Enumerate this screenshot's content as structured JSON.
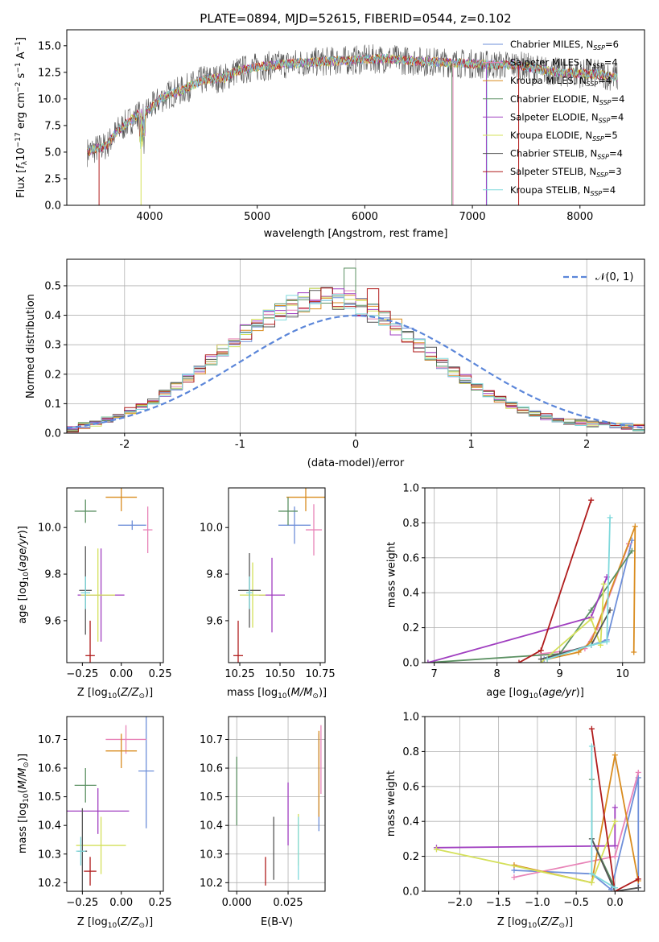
{
  "chart_data": [
    {
      "id": "spectrum",
      "type": "line",
      "title": "PLATE=0894, MJD=52615, FIBERID=0544, z=0.102",
      "xlabel": "wavelength [Angstrom, rest frame]",
      "ylabel": "Flux [fλ10⁻¹⁷ erg cm⁻² s⁻¹ A⁻¹]",
      "xlim": [
        3230,
        8600
      ],
      "ylim": [
        0,
        16.5
      ],
      "xticks": [
        4000,
        5000,
        6000,
        7000,
        8000
      ],
      "yticks": [
        0.0,
        2.5,
        5.0,
        7.5,
        10.0,
        12.5,
        15.0
      ],
      "envelope": {
        "x": [
          3420,
          3500,
          3600,
          3700,
          3800,
          3900,
          4000,
          4100,
          4200,
          4300,
          4400,
          4500,
          4600,
          4700,
          4800,
          4900,
          5000,
          5200,
          5400,
          5600,
          5800,
          6000,
          6200,
          6400,
          6600,
          6800,
          7000,
          7200,
          7400,
          7600,
          7800,
          8000,
          8200,
          8350
        ],
        "y": [
          5.0,
          5.3,
          5.6,
          7.0,
          7.8,
          8.6,
          9.0,
          10.0,
          10.5,
          10.8,
          11.3,
          11.8,
          11.9,
          12.0,
          12.6,
          12.8,
          13.0,
          13.2,
          13.4,
          13.5,
          13.6,
          13.7,
          13.8,
          13.6,
          13.5,
          13.4,
          13.3,
          13.2,
          13.2,
          12.8,
          12.5,
          12.4,
          12.3,
          12.0
        ]
      },
      "series": [
        {
          "name": "Chabrier MILES, N_SSP=6",
          "color": "#6e8fd9"
        },
        {
          "name": "Salpeter MILES, N_SSP=4",
          "color": "#e884b8"
        },
        {
          "name": "Kroupa MILES, N_SSP=4",
          "color": "#d98c1f"
        },
        {
          "name": "Chabrier ELODIE, N_SSP=4",
          "color": "#5c9163"
        },
        {
          "name": "Salpeter ELODIE, N_SSP=4",
          "color": "#a03fc0"
        },
        {
          "name": "Kroupa ELODIE, N_SSP=5",
          "color": "#d4e05a"
        },
        {
          "name": "Chabrier STELIB, N_SSP=4",
          "color": "#555555"
        },
        {
          "name": "Salpeter STELIB, N_SSP=3",
          "color": "#b01c1c"
        },
        {
          "name": "Kroupa STELIB, N_SSP=4",
          "color": "#7fd9dc"
        }
      ]
    },
    {
      "id": "residuals",
      "type": "line",
      "xlabel": "(data-model)/error",
      "ylabel": "Normed distribution",
      "xlim": [
        -2.5,
        2.5
      ],
      "ylim": [
        0,
        0.59
      ],
      "xticks": [
        -2,
        -1,
        0,
        1,
        2
      ],
      "yticks": [
        0.0,
        0.1,
        0.2,
        0.3,
        0.4,
        0.5
      ],
      "legend": "$\\mathcal{N}(0,1)$",
      "legend_text": "𝒩(0, 1)",
      "legend_position": "top-right",
      "normal_color": "#5b86d9",
      "bin_width": 0.1,
      "hist_base": [
        0.015,
        0.025,
        0.035,
        0.045,
        0.06,
        0.075,
        0.09,
        0.11,
        0.135,
        0.16,
        0.185,
        0.215,
        0.245,
        0.28,
        0.31,
        0.34,
        0.37,
        0.395,
        0.415,
        0.43,
        0.445,
        0.455,
        0.46,
        0.455,
        0.445,
        0.43,
        0.41,
        0.385,
        0.36,
        0.33,
        0.3,
        0.27,
        0.24,
        0.21,
        0.185,
        0.16,
        0.135,
        0.115,
        0.095,
        0.08,
        0.065,
        0.055,
        0.045,
        0.04,
        0.035,
        0.03,
        0.028,
        0.025,
        0.022,
        0.02
      ]
    },
    {
      "id": "z-age",
      "type": "scatter",
      "xlabel": "Z [log₁₀(Z/Z⊙)]",
      "ylabel": "age  [log₁₀(age/yr)]",
      "xlim": [
        -0.35,
        0.27
      ],
      "ylim": [
        9.42,
        10.17
      ],
      "xticks": [
        -0.25,
        0.0,
        0.25
      ],
      "xtick_labels": [
        "−0.25",
        "0.00",
        "0.25"
      ],
      "yticks": [
        9.6,
        9.8,
        10.0
      ],
      "points": [
        {
          "series": 0,
          "x": 0.07,
          "y": 10.01,
          "xe": 0.09,
          "ye": 0.02
        },
        {
          "series": 1,
          "x": 0.17,
          "y": 9.99,
          "xe": 0.03,
          "ye": 0.1
        },
        {
          "series": 2,
          "x": 0.0,
          "y": 10.13,
          "xe": 0.1,
          "ye": 0.06
        },
        {
          "series": 3,
          "x": -0.23,
          "y": 10.07,
          "xe": 0.07,
          "ye": 0.05
        },
        {
          "series": 4,
          "x": -0.13,
          "y": 9.71,
          "xe": 0.15,
          "ye": 0.2
        },
        {
          "series": 5,
          "x": -0.15,
          "y": 9.71,
          "xe": 0.11,
          "ye": 0.2
        },
        {
          "series": 6,
          "x": -0.23,
          "y": 9.73,
          "xe": 0.04,
          "ye": 0.19
        },
        {
          "series": 7,
          "x": -0.2,
          "y": 9.45,
          "xe": 0.03,
          "ye": 0.15
        },
        {
          "series": 8,
          "x": -0.23,
          "y": 9.72,
          "xe": 0.03,
          "ye": 0.07
        }
      ]
    },
    {
      "id": "mass-age",
      "type": "scatter",
      "xlabel": "mass [log₁₀(M/M⊙)]",
      "xlim": [
        10.18,
        10.78
      ],
      "ylim": [
        9.42,
        10.17
      ],
      "xticks": [
        10.25,
        10.5,
        10.75
      ],
      "xtick_labels": [
        "10.25",
        "10.50",
        "10.75"
      ],
      "yticks": [
        9.6,
        9.8,
        10.0
      ],
      "points": [
        {
          "series": 0,
          "x": 10.59,
          "y": 10.01,
          "xe": 0.1,
          "ye": 0.08
        },
        {
          "series": 1,
          "x": 10.71,
          "y": 9.99,
          "xe": 0.05,
          "ye": 0.11
        },
        {
          "series": 2,
          "x": 10.66,
          "y": 10.13,
          "xe": 0.12,
          "ye": 0.06
        },
        {
          "series": 3,
          "x": 10.55,
          "y": 10.07,
          "xe": 0.06,
          "ye": 0.06
        },
        {
          "series": 4,
          "x": 10.45,
          "y": 9.71,
          "xe": 0.08,
          "ye": 0.16
        },
        {
          "series": 5,
          "x": 10.33,
          "y": 9.71,
          "xe": 0.08,
          "ye": 0.14
        },
        {
          "series": 6,
          "x": 10.31,
          "y": 9.73,
          "xe": 0.07,
          "ye": 0.16
        },
        {
          "series": 7,
          "x": 10.24,
          "y": 9.45,
          "xe": 0.03,
          "ye": 0.15
        },
        {
          "series": 8,
          "x": 10.31,
          "y": 9.72,
          "xe": 0.02,
          "ye": 0.07
        }
      ]
    },
    {
      "id": "age-weight",
      "type": "line",
      "xlabel": "age  [log₁₀(age/yr)]",
      "ylabel": "mass weight",
      "xlim": [
        6.85,
        10.35
      ],
      "ylim": [
        0,
        1.0
      ],
      "xticks": [
        7,
        8,
        9,
        10
      ],
      "yticks": [
        0.0,
        0.2,
        0.4,
        0.6,
        0.8,
        1.0
      ],
      "lines": [
        {
          "series": 0,
          "x": [
            8.75,
            9.0,
            9.5,
            9.75,
            10.15
          ],
          "y": [
            0.02,
            0.05,
            0.1,
            0.13,
            0.7
          ]
        },
        {
          "series": 1,
          "x": [
            8.7,
            9.4,
            9.6,
            10.1
          ],
          "y": [
            0.05,
            0.08,
            0.2,
            0.68
          ]
        },
        {
          "series": 2,
          "x": [
            8.8,
            9.3,
            9.5,
            10.2,
            10.18
          ],
          "y": [
            0.02,
            0.06,
            0.12,
            0.78,
            0.06
          ]
        },
        {
          "series": 3,
          "x": [
            6.9,
            9.0,
            9.5,
            10.15
          ],
          "y": [
            0.0,
            0.05,
            0.3,
            0.64
          ]
        },
        {
          "series": 4,
          "x": [
            6.9,
            9.5,
            9.75
          ],
          "y": [
            0.0,
            0.26,
            0.49
          ]
        },
        {
          "series": 5,
          "x": [
            8.7,
            9.5,
            9.65,
            9.7
          ],
          "y": [
            0.0,
            0.25,
            0.1,
            0.45
          ]
        },
        {
          "series": 6,
          "x": [
            8.7,
            9.0,
            9.5,
            9.8
          ],
          "y": [
            0.02,
            0.05,
            0.1,
            0.3
          ]
        },
        {
          "series": 7,
          "x": [
            8.35,
            8.7,
            9.5
          ],
          "y": [
            0.0,
            0.07,
            0.93
          ]
        },
        {
          "series": 8,
          "x": [
            8.8,
            9.5,
            9.75,
            9.8
          ],
          "y": [
            0.02,
            0.1,
            0.12,
            0.83
          ]
        }
      ]
    },
    {
      "id": "z-mass",
      "type": "scatter",
      "xlabel": "Z [log₁₀(Z/Z⊙)]",
      "ylabel": "mass [log₁₀(M/M⊙)]",
      "xlim": [
        -0.35,
        0.27
      ],
      "ylim": [
        10.17,
        10.78
      ],
      "xticks": [
        -0.25,
        0.0,
        0.25
      ],
      "xtick_labels": [
        "−0.25",
        "0.00",
        "0.25"
      ],
      "yticks": [
        10.2,
        10.3,
        10.4,
        10.5,
        10.6,
        10.7
      ],
      "points": [
        {
          "series": 0,
          "x": 0.16,
          "y": 10.59,
          "xe": 0.05,
          "ye": 0.2
        },
        {
          "series": 1,
          "x": 0.03,
          "y": 10.7,
          "xe": 0.13,
          "ye": 0.05
        },
        {
          "series": 2,
          "x": 0.0,
          "y": 10.66,
          "xe": 0.1,
          "ye": 0.06
        },
        {
          "series": 3,
          "x": -0.23,
          "y": 10.54,
          "xe": 0.07,
          "ye": 0.06
        },
        {
          "series": 4,
          "x": -0.15,
          "y": 10.45,
          "xe": 0.2,
          "ye": 0.08
        },
        {
          "series": 5,
          "x": -0.13,
          "y": 10.33,
          "xe": 0.16,
          "ye": 0.1
        },
        {
          "series": 6,
          "x": -0.25,
          "y": 10.31,
          "xe": 0.03,
          "ye": 0.15
        },
        {
          "series": 7,
          "x": -0.2,
          "y": 10.24,
          "xe": 0.04,
          "ye": 0.05
        },
        {
          "series": 8,
          "x": -0.26,
          "y": 10.31,
          "xe": 0.03,
          "ye": 0.05
        }
      ]
    },
    {
      "id": "ebv-mass",
      "type": "scatter",
      "xlabel": "E(B-V)",
      "xlim": [
        -0.004,
        0.043
      ],
      "ylim": [
        10.17,
        10.78
      ],
      "xticks": [
        0.0,
        0.025
      ],
      "xtick_labels": [
        "0.000",
        "0.025"
      ],
      "yticks": [
        10.2,
        10.3,
        10.4,
        10.5,
        10.6,
        10.7
      ],
      "points": [
        {
          "series": 0,
          "x": 0.04,
          "y": 10.55,
          "xe": 0,
          "ye": 0.17
        },
        {
          "series": 1,
          "x": 0.041,
          "y": 10.63,
          "xe": 0,
          "ye": 0.12
        },
        {
          "series": 2,
          "x": 0.04,
          "y": 10.58,
          "xe": 0,
          "ye": 0.15
        },
        {
          "series": 3,
          "x": 0.0,
          "y": 10.52,
          "xe": 0,
          "ye": 0.12
        },
        {
          "series": 4,
          "x": 0.025,
          "y": 10.44,
          "xe": 0,
          "ye": 0.11
        },
        {
          "series": 5,
          "x": 0.03,
          "y": 10.35,
          "xe": 0,
          "ye": 0.09
        },
        {
          "series": 6,
          "x": 0.018,
          "y": 10.32,
          "xe": 0,
          "ye": 0.11
        },
        {
          "series": 7,
          "x": 0.014,
          "y": 10.24,
          "xe": 0,
          "ye": 0.05
        },
        {
          "series": 8,
          "x": 0.03,
          "y": 10.32,
          "xe": 0,
          "ye": 0.11
        }
      ]
    },
    {
      "id": "z-weight",
      "type": "line",
      "xlabel": "Z [log₁₀(Z/Z⊙)]",
      "ylabel": "mass weight",
      "xlim": [
        -2.45,
        0.38
      ],
      "ylim": [
        0,
        1.0
      ],
      "xticks": [
        -2.0,
        -1.5,
        -1.0,
        -0.5,
        0.0
      ],
      "xtick_labels": [
        "−2.0",
        "−1.5",
        "−1.0",
        "−0.5",
        "0.0"
      ],
      "yticks": [
        0.0,
        0.2,
        0.4,
        0.6,
        0.8,
        1.0
      ],
      "lines": [
        {
          "series": 0,
          "x": [
            -1.3,
            -0.3,
            -0.05,
            0.3,
            0.3
          ],
          "y": [
            0.12,
            0.1,
            0.01,
            0.65,
            0.02
          ]
        },
        {
          "series": 1,
          "x": [
            -1.3,
            0.0,
            0.3
          ],
          "y": [
            0.08,
            0.2,
            0.68
          ]
        },
        {
          "series": 2,
          "x": [
            -1.3,
            -0.3,
            0.0,
            0.3
          ],
          "y": [
            0.15,
            0.05,
            0.78,
            0.06
          ]
        },
        {
          "series": 3,
          "x": [
            -0.3,
            -0.3,
            0.0
          ],
          "y": [
            0.64,
            0.3,
            0.02
          ]
        },
        {
          "series": 4,
          "x": [
            -2.3,
            0.0,
            0.0
          ],
          "y": [
            0.25,
            0.26,
            0.48
          ]
        },
        {
          "series": 5,
          "x": [
            -2.3,
            -0.3,
            0.0
          ],
          "y": [
            0.24,
            0.05,
            0.4
          ]
        },
        {
          "series": 6,
          "x": [
            -0.3,
            0.0,
            0.3
          ],
          "y": [
            0.3,
            0.0,
            0.02
          ]
        },
        {
          "series": 7,
          "x": [
            -0.3,
            0.0,
            0.3
          ],
          "y": [
            0.93,
            0.0,
            0.07
          ]
        },
        {
          "series": 8,
          "x": [
            -0.3,
            -0.3,
            0.0
          ],
          "y": [
            0.83,
            0.1,
            0.02
          ]
        }
      ]
    }
  ]
}
